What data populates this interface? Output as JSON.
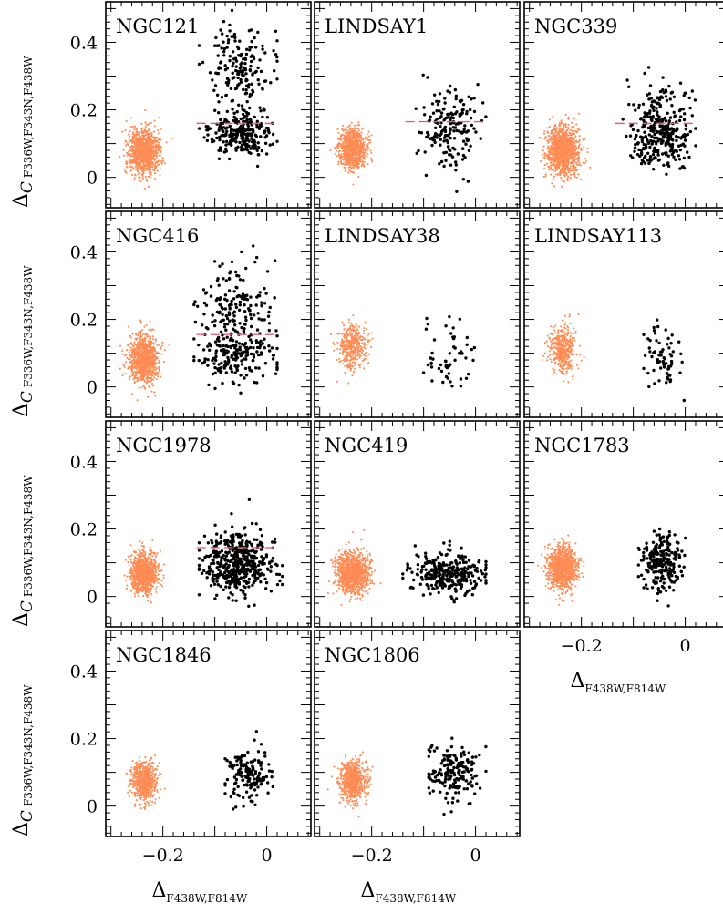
{
  "chart_data": {
    "type": "scatter",
    "layout": "small-multiples",
    "colors": {
      "reference": "#ff8c55",
      "cluster": "#000000",
      "threshold": "#e0607a",
      "frame": "#000000"
    },
    "x_axis": {
      "label": "Δ",
      "label_sub": "F438W,F814W",
      "ticks": [
        -0.2,
        0
      ],
      "tick_labels": [
        "−0.2",
        "0"
      ],
      "xlim": [
        -0.31,
        0.085
      ]
    },
    "y_axis": {
      "label": "Δ",
      "label_c": "C",
      "label_sub": "F336W,F343N,F438W",
      "ticks": [
        0,
        0.2,
        0.4
      ],
      "tick_labels": [
        "0",
        "0.2",
        "0.4"
      ],
      "ylim": [
        -0.09,
        0.52
      ]
    },
    "panels": [
      {
        "name": "NGC121",
        "threshold": 0.16,
        "ref": {
          "n": 1100,
          "x": -0.236,
          "sx": 0.015,
          "y": 0.075,
          "sy": 0.033
        },
        "cl": {
          "n": 430,
          "x": -0.05,
          "sx": 0.03,
          "comps": [
            [
              0.13,
              0.035,
              0.6
            ],
            [
              0.33,
              0.06,
              0.4
            ]
          ],
          "xr": [
            -0.13,
            0.02
          ]
        }
      },
      {
        "name": "LINDSAY1",
        "threshold": 0.165,
        "ref": {
          "n": 850,
          "x": -0.236,
          "sx": 0.013,
          "y": 0.085,
          "sy": 0.03
        },
        "cl": {
          "n": 180,
          "x": -0.05,
          "sx": 0.03,
          "comps": [
            [
              0.14,
              0.065,
              1
            ]
          ],
          "xr": [
            -0.12,
            0.03
          ]
        }
      },
      {
        "name": "NGC339",
        "threshold": 0.16,
        "ref": {
          "n": 1200,
          "x": -0.236,
          "sx": 0.015,
          "y": 0.08,
          "sy": 0.035
        },
        "cl": {
          "n": 330,
          "x": -0.05,
          "sx": 0.028,
          "comps": [
            [
              0.11,
              0.045,
              0.7
            ],
            [
              0.2,
              0.05,
              0.3
            ]
          ],
          "xr": [
            -0.12,
            0.02
          ]
        }
      },
      {
        "name": "NGC416",
        "threshold": 0.155,
        "ref": {
          "n": 1050,
          "x": -0.236,
          "sx": 0.014,
          "y": 0.08,
          "sy": 0.035
        },
        "cl": {
          "n": 360,
          "x": -0.06,
          "sx": 0.035,
          "comps": [
            [
              0.09,
              0.04,
              0.55
            ],
            [
              0.24,
              0.06,
              0.45
            ]
          ],
          "xr": [
            -0.14,
            0.02
          ]
        }
      },
      {
        "name": "LINDSAY38",
        "threshold": null,
        "ref": {
          "n": 420,
          "x": -0.236,
          "sx": 0.013,
          "y": 0.12,
          "sy": 0.035
        },
        "cl": {
          "n": 55,
          "x": -0.05,
          "sx": 0.025,
          "comps": [
            [
              0.1,
              0.045,
              1
            ]
          ],
          "xr": [
            -0.1,
            0.01
          ]
        }
      },
      {
        "name": "LINDSAY113",
        "threshold": null,
        "ref": {
          "n": 430,
          "x": -0.236,
          "sx": 0.012,
          "y": 0.11,
          "sy": 0.035
        },
        "cl": {
          "n": 70,
          "x": -0.045,
          "sx": 0.02,
          "comps": [
            [
              0.09,
              0.035,
              1
            ]
          ],
          "xr": [
            -0.08,
            0.02
          ]
        }
      },
      {
        "name": "NGC1978",
        "threshold": 0.145,
        "ref": {
          "n": 1000,
          "x": -0.236,
          "sx": 0.013,
          "y": 0.07,
          "sy": 0.03
        },
        "cl": {
          "n": 460,
          "x": -0.055,
          "sx": 0.035,
          "comps": [
            [
              0.1,
              0.045,
              1
            ]
          ],
          "xr": [
            -0.13,
            0.03
          ]
        }
      },
      {
        "name": "NGC419",
        "threshold": null,
        "ref": {
          "n": 1150,
          "x": -0.236,
          "sx": 0.015,
          "y": 0.07,
          "sy": 0.03
        },
        "cl": {
          "n": 300,
          "x": -0.055,
          "sx": 0.035,
          "comps": [
            [
              0.07,
              0.03,
              1
            ]
          ],
          "xr": [
            -0.14,
            0.02
          ]
        }
      },
      {
        "name": "NGC1783",
        "threshold": null,
        "ref": {
          "n": 1100,
          "x": -0.236,
          "sx": 0.014,
          "y": 0.085,
          "sy": 0.032
        },
        "cl": {
          "n": 230,
          "x": -0.045,
          "sx": 0.02,
          "comps": [
            [
              0.1,
              0.04,
              1
            ]
          ],
          "xr": [
            -0.09,
            0.01
          ]
        }
      },
      {
        "name": "NGC1846",
        "threshold": null,
        "ref": {
          "n": 650,
          "x": -0.236,
          "sx": 0.012,
          "y": 0.075,
          "sy": 0.03
        },
        "cl": {
          "n": 150,
          "x": -0.035,
          "sx": 0.02,
          "comps": [
            [
              0.09,
              0.04,
              1
            ]
          ],
          "xr": [
            -0.08,
            0.02
          ]
        }
      },
      {
        "name": "NGC1806",
        "threshold": null,
        "ref": {
          "n": 750,
          "x": -0.236,
          "sx": 0.013,
          "y": 0.075,
          "sy": 0.03
        },
        "cl": {
          "n": 180,
          "x": -0.04,
          "sx": 0.025,
          "comps": [
            [
              0.1,
              0.04,
              1
            ]
          ],
          "xr": [
            -0.09,
            0.02
          ]
        }
      }
    ]
  }
}
